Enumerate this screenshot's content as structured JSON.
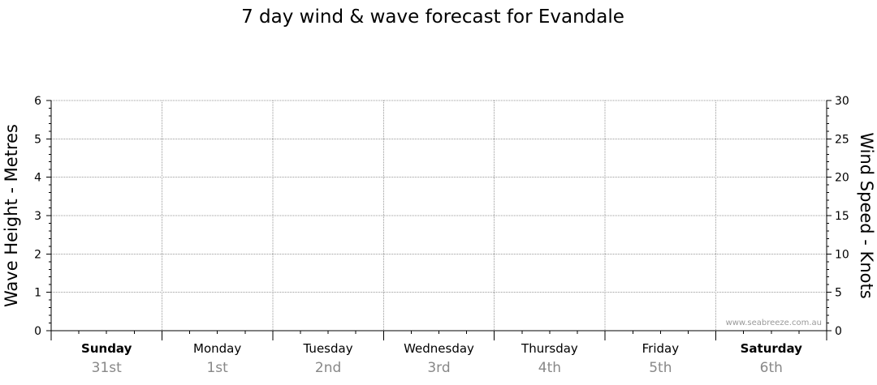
{
  "chart_data": {
    "type": "line",
    "title": "7 day wind & wave forecast for Evandale",
    "y_left_label": "Wave Height - Metres",
    "y_right_label": "Wind Speed - Knots",
    "y_left_range": [
      0,
      6
    ],
    "y_left_ticks": [
      "0",
      "1",
      "2",
      "3",
      "4",
      "5",
      "6"
    ],
    "y_right_range": [
      0,
      30
    ],
    "y_right_ticks": [
      "0",
      "5",
      "10",
      "15",
      "20",
      "25",
      "30"
    ],
    "days": [
      {
        "name": "Sunday",
        "date": "31st",
        "bold": true
      },
      {
        "name": "Monday",
        "date": "1st",
        "bold": false
      },
      {
        "name": "Tuesday",
        "date": "2nd",
        "bold": false
      },
      {
        "name": "Wednesday",
        "date": "3rd",
        "bold": false
      },
      {
        "name": "Thursday",
        "date": "4th",
        "bold": false
      },
      {
        "name": "Friday",
        "date": "5th",
        "bold": false
      },
      {
        "name": "Saturday",
        "date": "6th",
        "bold": true
      }
    ],
    "series": [],
    "grid": true,
    "watermark": "www.seabreeze.com.au",
    "colors": {
      "axis": "#000000",
      "grid": "#999999",
      "date_text": "#888888",
      "watermark": "#999999"
    }
  }
}
